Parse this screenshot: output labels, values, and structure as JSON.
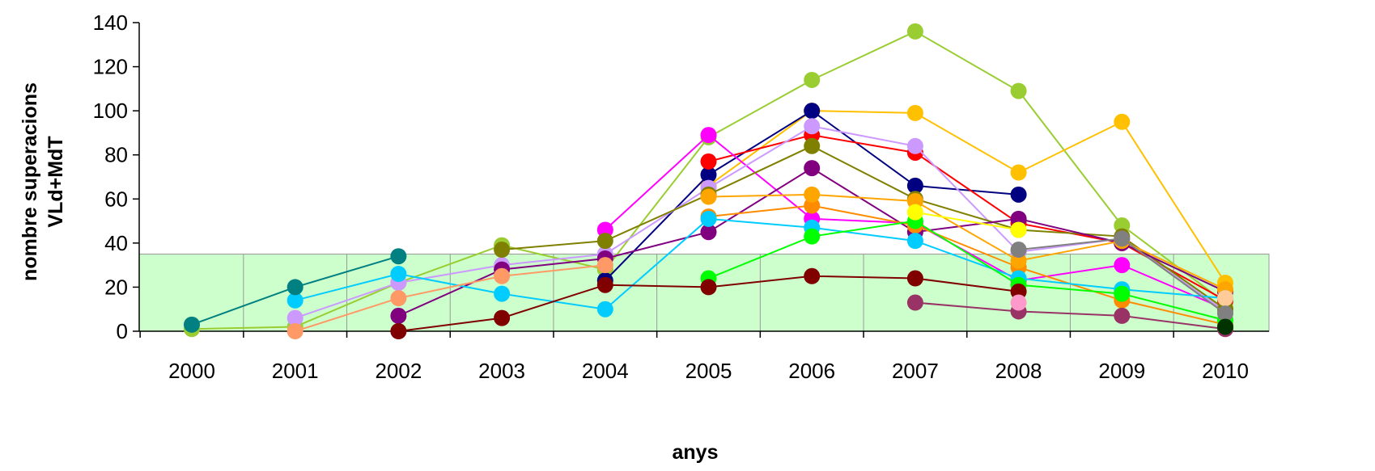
{
  "chart_data": {
    "type": "line",
    "title": "",
    "xlabel": "anys",
    "ylabel_line1": "nombre superacions",
    "ylabel_line2": "VLd+MdT",
    "categories": [
      "2000",
      "2001",
      "2002",
      "2003",
      "2004",
      "2005",
      "2006",
      "2007",
      "2008",
      "2009",
      "2010"
    ],
    "yticks": [
      "0",
      "20",
      "40",
      "60",
      "80",
      "100",
      "120",
      "140"
    ],
    "ylim": [
      0,
      140
    ],
    "grid": "vertical gridlines within threshold band",
    "threshold": {
      "value": 35,
      "fill": "#ccffcc"
    },
    "series": [
      {
        "color": "#9acd32",
        "values": [
          1,
          2,
          22,
          39,
          28,
          88,
          114,
          136,
          109,
          48,
          13
        ]
      },
      {
        "color": "#ffc000",
        "values": [
          null,
          null,
          null,
          null,
          null,
          66,
          100,
          99,
          72,
          95,
          22
        ]
      },
      {
        "color": "#000080",
        "values": [
          null,
          null,
          null,
          null,
          23,
          71,
          100,
          66,
          62,
          null,
          null
        ]
      },
      {
        "color": "#ff0000",
        "values": [
          null,
          null,
          null,
          null,
          null,
          77,
          89,
          81,
          49,
          40,
          14
        ]
      },
      {
        "color": "#ff00ff",
        "values": [
          null,
          null,
          null,
          null,
          46,
          89,
          51,
          49,
          23,
          30,
          10
        ]
      },
      {
        "color": "#cc99ff",
        "values": [
          null,
          6,
          22,
          30,
          35,
          65,
          93,
          84,
          36,
          42,
          9
        ]
      },
      {
        "color": "#808000",
        "values": [
          null,
          null,
          null,
          37,
          41,
          62,
          84,
          60,
          46,
          43,
          10
        ]
      },
      {
        "color": "#800080",
        "values": [
          null,
          null,
          7,
          28,
          33,
          45,
          74,
          45,
          51,
          40,
          18
        ]
      },
      {
        "color": "#ff8c00",
        "values": [
          null,
          null,
          null,
          null,
          null,
          52,
          57,
          48,
          29,
          14,
          3
        ]
      },
      {
        "color": "#ffa500",
        "values": [
          null,
          null,
          null,
          null,
          null,
          61,
          62,
          59,
          32,
          41,
          19
        ]
      },
      {
        "color": "#00ccff",
        "values": [
          null,
          14,
          26,
          17,
          10,
          51,
          47,
          41,
          24,
          19,
          15
        ]
      },
      {
        "color": "#ff9966",
        "values": [
          null,
          0,
          15,
          25,
          30,
          null,
          null,
          null,
          null,
          null,
          null
        ]
      },
      {
        "color": "#008080",
        "values": [
          3,
          20,
          34,
          null,
          null,
          null,
          null,
          null,
          null,
          null,
          null
        ]
      },
      {
        "color": "#00ff00",
        "values": [
          null,
          null,
          null,
          null,
          null,
          24,
          43,
          50,
          21,
          17,
          5
        ]
      },
      {
        "color": "#800000",
        "values": [
          null,
          null,
          0,
          6,
          21,
          20,
          25,
          24,
          18,
          null,
          null
        ]
      },
      {
        "color": "#993366",
        "values": [
          null,
          null,
          null,
          null,
          null,
          null,
          null,
          13,
          9,
          7,
          1
        ]
      },
      {
        "color": "#ffff00",
        "values": [
          null,
          null,
          null,
          null,
          null,
          null,
          null,
          54,
          46,
          null,
          null
        ]
      },
      {
        "color": "#ff99cc",
        "values": [
          null,
          null,
          null,
          null,
          null,
          null,
          null,
          null,
          13,
          null,
          null
        ]
      },
      {
        "color": "#ffcc99",
        "values": [
          null,
          null,
          null,
          null,
          null,
          null,
          null,
          null,
          null,
          null,
          15
        ]
      },
      {
        "color": "#808080",
        "values": [
          null,
          null,
          null,
          null,
          null,
          null,
          null,
          null,
          37,
          42,
          8
        ]
      },
      {
        "color": "#003300",
        "values": [
          null,
          null,
          null,
          null,
          null,
          null,
          null,
          null,
          null,
          null,
          2
        ]
      }
    ]
  }
}
